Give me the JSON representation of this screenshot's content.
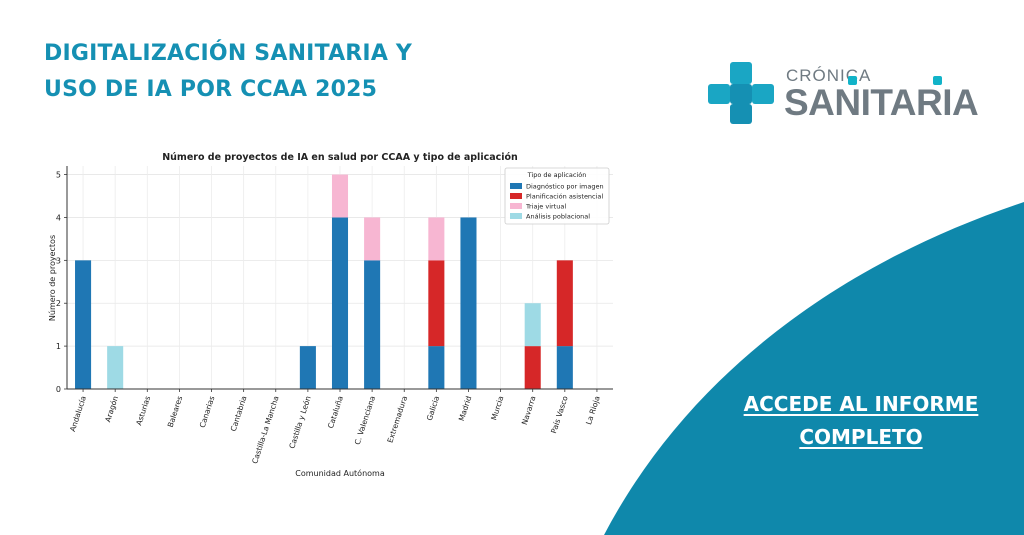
{
  "headline": {
    "line1": "DIGITALIZACIÓN SANITARIA Y",
    "line2": "USO DE IA POR CCAA 2025"
  },
  "logo": {
    "top": "CRÓNICA",
    "main": "SANITARIA"
  },
  "cta": {
    "line1": "ACCEDE AL INFORME",
    "line2": "COMPLETO"
  },
  "colors": {
    "brand": "#1590b3",
    "wave": "#0f88ab",
    "logo_text": "#6f7a82"
  },
  "chart_data": {
    "type": "bar",
    "stacked": true,
    "title": "Número de proyectos de IA en salud por CCAA y tipo de aplicación",
    "xlabel": "Comunidad Autónoma",
    "ylabel": "Número de proyectos",
    "ylim": [
      0,
      5.2
    ],
    "yticks": [
      0,
      1,
      2,
      3,
      4,
      5
    ],
    "grid": true,
    "legend_title": "Tipo de aplicación",
    "legend_position": "top-right",
    "categories": [
      "Andalucía",
      "Aragón",
      "Asturias",
      "Baleares",
      "Canarias",
      "Cantabria",
      "Castilla-La Mancha",
      "Castilla y León",
      "Cataluña",
      "C. Valenciana",
      "Extremadura",
      "Galicia",
      "Madrid",
      "Murcia",
      "Navarra",
      "País Vasco",
      "La Rioja"
    ],
    "series": [
      {
        "name": "Diagnóstico por imagen",
        "color": "#1f77b4",
        "values": [
          3,
          0,
          0,
          0,
          0,
          0,
          0,
          1,
          4,
          3,
          0,
          1,
          4,
          0,
          0,
          1,
          0
        ]
      },
      {
        "name": "Planificación asistencial",
        "color": "#d62728",
        "values": [
          0,
          0,
          0,
          0,
          0,
          0,
          0,
          0,
          0,
          0,
          0,
          2,
          0,
          0,
          1,
          2,
          0
        ]
      },
      {
        "name": "Triaje virtual",
        "color": "#f7b6d2",
        "values": [
          0,
          0,
          0,
          0,
          0,
          0,
          0,
          0,
          1,
          1,
          0,
          1,
          0,
          0,
          0,
          0,
          0
        ]
      },
      {
        "name": "Análisis poblacional",
        "color": "#9edae5",
        "values": [
          0,
          1,
          0,
          0,
          0,
          0,
          0,
          0,
          0,
          0,
          0,
          0,
          0,
          0,
          1,
          0,
          0
        ]
      }
    ]
  }
}
